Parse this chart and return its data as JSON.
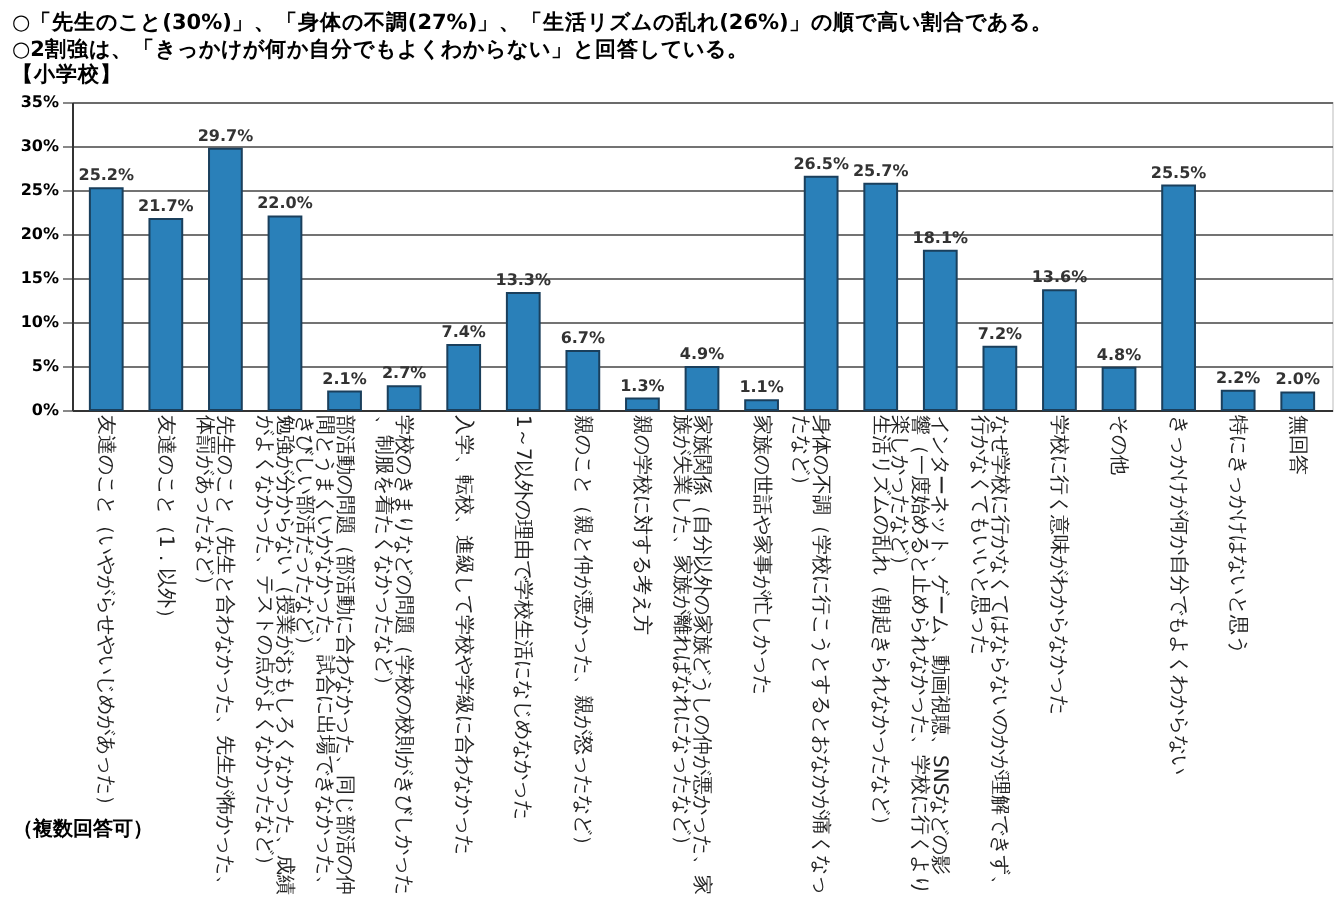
{
  "chart_data": {
    "type": "bar",
    "title": "○「先生のこと(30%)」、「身体の不調(27%)」、「生活リズムの乱れ(26%)」の順で高い割合である。",
    "subtitle": "○2割強は、「きっかけが何か自分でもよくわからない」と回答している。",
    "annotations": [
      "【小学校】",
      "（複数回答可）"
    ],
    "categories": [
      "友達のこと（いやがらせやいじめがあった）",
      "友達のこと（1．以外）",
      "先生のこと（先生と合わなかった、先生が怖かった、体罰があったなど）",
      "勉強が分からない（授業がおもしろくなかった、成績がよくなかった、テストの点がよくなかったなど）",
      "部活動の問題（部活動に合わなかった、同じ部活の仲間とうまくいかなかった、試合に出場できなかった、きびしい部活だったなど）",
      "学校のきまりなどの問題（学校の校則がきびしかった、制服を着たくなかったなど）",
      "入学、転校、進級して学校や学級に合わなかった",
      "1～7以外の理由で学校生活になじめなかった",
      "親のこと（親と仲が悪かった、親が怒ったなど）",
      "親の学校に対する考え方",
      "家族関係（自分以外の家族どうしの仲が悪かった、家族が失業した、家族が離ればなれになったなど）",
      "家族の世話や家事が忙しかった",
      "身体の不調（学校に行こうとするとおなかが痛くなったなど）",
      "生活リズムの乱れ（朝起きられなかったなど）",
      "インターネット、ゲーム、動画視聴、SNSなどの影響（一度始めると止められなかった、学校に行くより楽しかったなど）",
      "なぜ学校に行かなくてはならないのかが理解できず、行かなくてもいいと思った",
      "学校に行く意味がわからなかった",
      "その他",
      "きっかけが何か自分でもよくわからない",
      "特にきっかけはないと思う",
      "無回答"
    ],
    "values": [
      25.2,
      21.7,
      29.7,
      22.0,
      2.1,
      2.7,
      7.4,
      13.3,
      6.7,
      1.3,
      4.9,
      1.1,
      26.5,
      25.7,
      18.1,
      7.2,
      13.6,
      4.8,
      25.5,
      2.2,
      2.0
    ],
    "value_labels": [
      "25.2%",
      "21.7%",
      "29.7%",
      "22.0%",
      "2.1%",
      "2.7%",
      "7.4%",
      "13.3%",
      "6.7%",
      "1.3%",
      "4.9%",
      "1.1%",
      "26.5%",
      "25.7%",
      "18.1%",
      "7.2%",
      "13.6%",
      "4.8%",
      "25.5%",
      "2.2%",
      "2.0%"
    ],
    "color": "#2a80b9",
    "ylim": [
      0,
      35
    ],
    "yticks": [
      {
        "value": 0,
        "label": "0%"
      },
      {
        "value": 5,
        "label": "5%"
      },
      {
        "value": 10,
        "label": "10%"
      },
      {
        "value": 15,
        "label": "15%"
      },
      {
        "value": 20,
        "label": "20%"
      },
      {
        "value": 25,
        "label": "25%"
      },
      {
        "value": 30,
        "label": "30%"
      },
      {
        "value": 35,
        "label": "35%"
      }
    ],
    "grid": "y"
  }
}
